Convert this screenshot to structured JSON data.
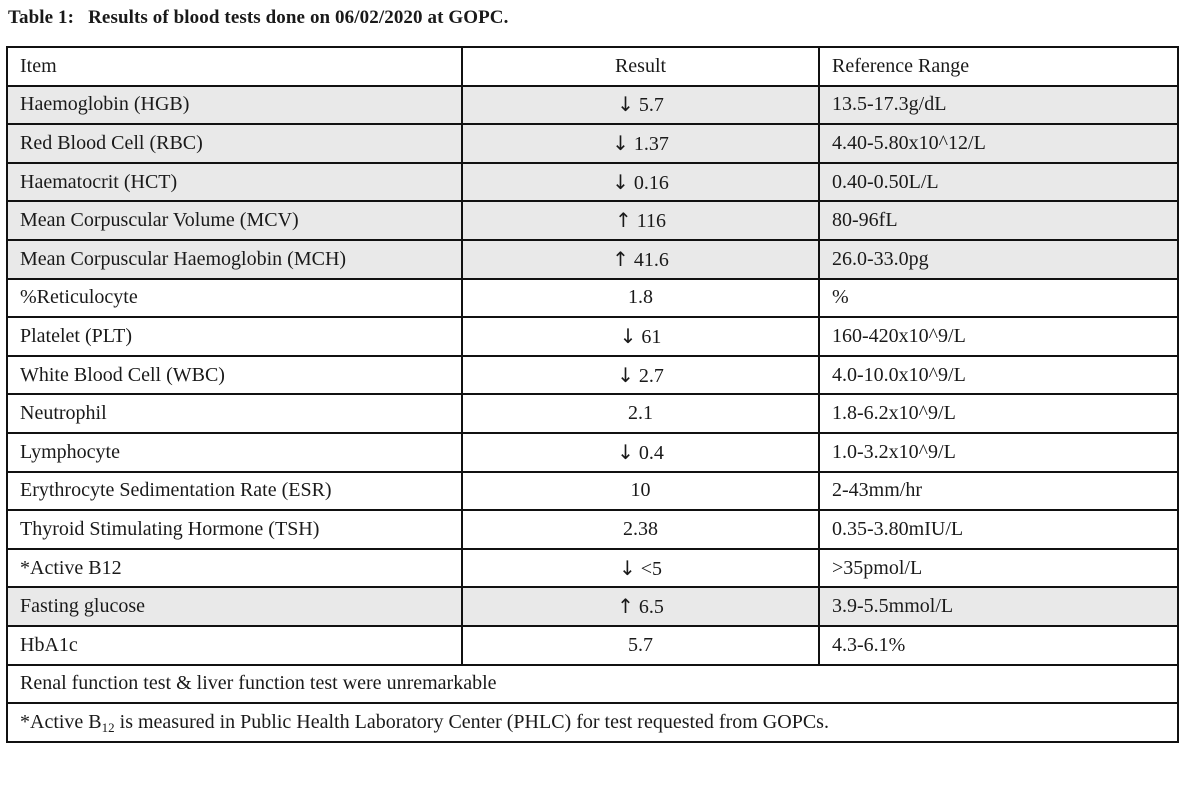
{
  "caption": {
    "label": "Table 1:",
    "title": "Results of blood tests done on 06/02/2020 at GOPC."
  },
  "headers": {
    "item": "Item",
    "result": "Result",
    "range": "Reference Range"
  },
  "rows": [
    {
      "item": "Haemoglobin (HGB)",
      "flag": "↓",
      "value": "5.7",
      "range": "13.5-17.3g/dL"
    },
    {
      "item": "Red Blood Cell (RBC)",
      "flag": "↓",
      "value": "1.37",
      "range": "4.40-5.80x10^12/L"
    },
    {
      "item": "Haematocrit (HCT)",
      "flag": "↓",
      "value": "0.16",
      "range": "0.40-0.50L/L"
    },
    {
      "item": "Mean Corpuscular Volume (MCV)",
      "flag": "↑",
      "value": "116",
      "range": "80-96fL"
    },
    {
      "item": "Mean Corpuscular Haemoglobin (MCH)",
      "flag": "↑",
      "value": "41.6",
      "range": "26.0-33.0pg"
    },
    {
      "item": "%Reticulocyte",
      "flag": "",
      "value": "1.8",
      "range": "%"
    },
    {
      "item": "Platelet (PLT)",
      "flag": "↓",
      "value": "61",
      "range": "160-420x10^9/L"
    },
    {
      "item": "White Blood Cell (WBC)",
      "flag": "↓",
      "value": "2.7",
      "range": "4.0-10.0x10^9/L"
    },
    {
      "item": "Neutrophil",
      "flag": "",
      "value": "2.1",
      "range": "1.8-6.2x10^9/L"
    },
    {
      "item": "Lymphocyte",
      "flag": "↓",
      "value": "0.4",
      "range": "1.0-3.2x10^9/L"
    },
    {
      "item": "Erythrocyte Sedimentation Rate (ESR)",
      "flag": "",
      "value": "10",
      "range": "2-43mm/hr"
    },
    {
      "item": "Thyroid Stimulating Hormone (TSH)",
      "flag": "",
      "value": "2.38",
      "range": "0.35-3.80mIU/L"
    },
    {
      "item": "*Active B12",
      "flag": "↓",
      "value": "<5",
      "range": ">35pmol/L"
    },
    {
      "item": "Fasting glucose",
      "flag": "↑",
      "value": "6.5",
      "range": "3.9-5.5mmol/L"
    },
    {
      "item": "HbA1c",
      "flag": "",
      "value": "5.7",
      "range": "4.3-6.1%"
    }
  ],
  "shaded_rows": [
    0,
    1,
    2,
    3,
    4,
    13
  ],
  "notes": {
    "renal": "Renal function test & liver function test were unremarkable",
    "b12_prefix": "*Active B",
    "b12_sub": "12",
    "b12_suffix": " is measured in Public Health Laboratory Center (PHLC) for test requested from GOPCs."
  }
}
